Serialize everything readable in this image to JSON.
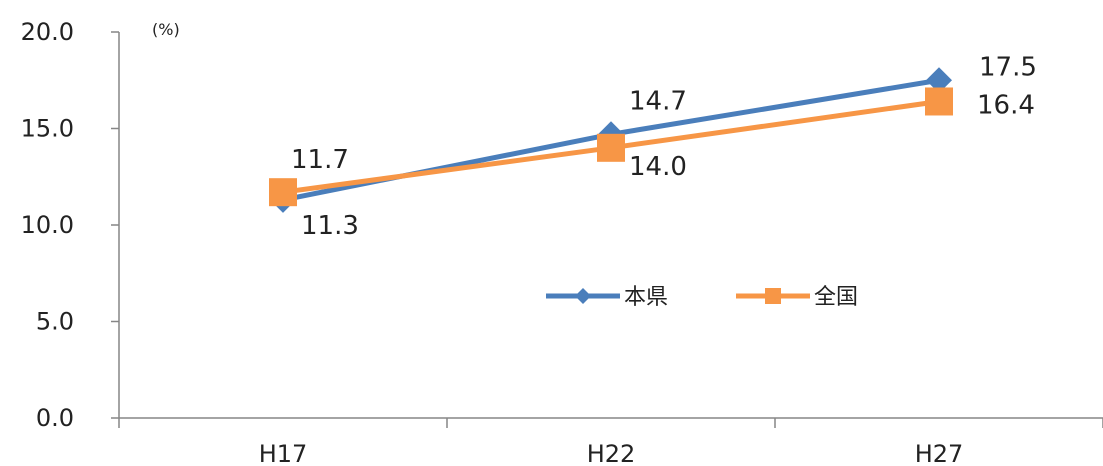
{
  "chart_data": {
    "type": "line",
    "categories": [
      "H17",
      "H22",
      "H27"
    ],
    "series": [
      {
        "name": "本県",
        "values": [
          11.3,
          14.7,
          17.5
        ],
        "color": "#4a7ebb",
        "marker": "diamond"
      },
      {
        "name": "全国",
        "values": [
          11.7,
          14.0,
          16.4
        ],
        "color": "#f79646",
        "marker": "square"
      }
    ],
    "ylim": [
      0,
      20
    ],
    "yticks": [
      "0.0",
      "5.0",
      "10.0",
      "15.0",
      "20.0"
    ],
    "ylabel": "(%)",
    "grid": false,
    "legend_position": "center-right",
    "data_labels": {
      "本県": [
        "11.3",
        "14.7",
        "17.5"
      ],
      "全国": [
        "11.7",
        "14.0",
        "16.4"
      ]
    }
  }
}
